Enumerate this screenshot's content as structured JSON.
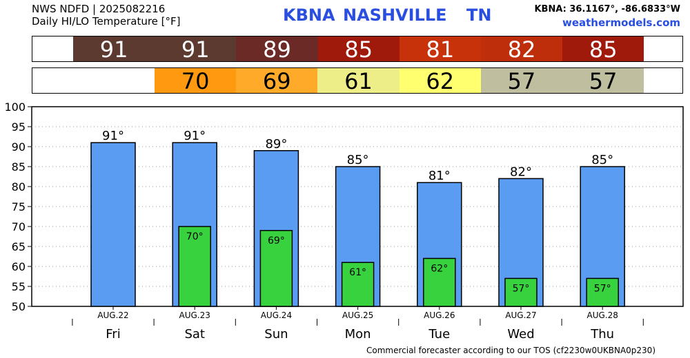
{
  "header": {
    "line1": "NWS NDFD | 2025082216",
    "line2": "Daily HI/LO Temperature [°F]",
    "station": "KBNA",
    "city": "NASHVILLE",
    "state": "TN",
    "coords": "KBNA: 36.1167°, -86.6833°W",
    "website": "weathermodels.com"
  },
  "footer": "Commercial forecaster according to our TOS (cf2230w0UKBNA0p230)",
  "hi_strip": [
    {
      "value": "91",
      "color": "#5c3a30"
    },
    {
      "value": "91",
      "color": "#5c3a30"
    },
    {
      "value": "89",
      "color": "#6b2a26"
    },
    {
      "value": "85",
      "color": "#a01a0c"
    },
    {
      "value": "81",
      "color": "#c8320a"
    },
    {
      "value": "82",
      "color": "#bf2e0a"
    },
    {
      "value": "85",
      "color": "#a01a0c"
    }
  ],
  "lo_strip": [
    {
      "value": "70",
      "color": "#ff9910"
    },
    {
      "value": "69",
      "color": "#ffaa28"
    },
    {
      "value": "61",
      "color": "#eeee88"
    },
    {
      "value": "62",
      "color": "#ffff70"
    },
    {
      "value": "57",
      "color": "#bfbf9f"
    },
    {
      "value": "57",
      "color": "#bfbf9f"
    }
  ],
  "chart_data": {
    "type": "bar",
    "categories": [
      "Fri",
      "Sat",
      "Sun",
      "Mon",
      "Tue",
      "Wed",
      "Thu"
    ],
    "dates": [
      "AUG.22",
      "AUG.23",
      "AUG.24",
      "AUG.25",
      "AUG.26",
      "AUG.27",
      "AUG.28"
    ],
    "series": [
      {
        "values": [
          91,
          91,
          89,
          85,
          81,
          82,
          85
        ],
        "color": "#5a9cf2"
      },
      {
        "values": [
          null,
          70,
          69,
          61,
          62,
          57,
          57
        ],
        "color": "#39d23f"
      }
    ],
    "hi_labels": [
      "91°",
      "91°",
      "89°",
      "85°",
      "81°",
      "82°",
      "85°"
    ],
    "lo_labels": [
      "",
      "70°",
      "69°",
      "61°",
      "62°",
      "57°",
      "57°"
    ],
    "yticks": [
      "50",
      "55",
      "60",
      "65",
      "70",
      "75",
      "80",
      "85",
      "90",
      "95",
      "100"
    ],
    "ylim": [
      50,
      100
    ],
    "grid": true
  }
}
